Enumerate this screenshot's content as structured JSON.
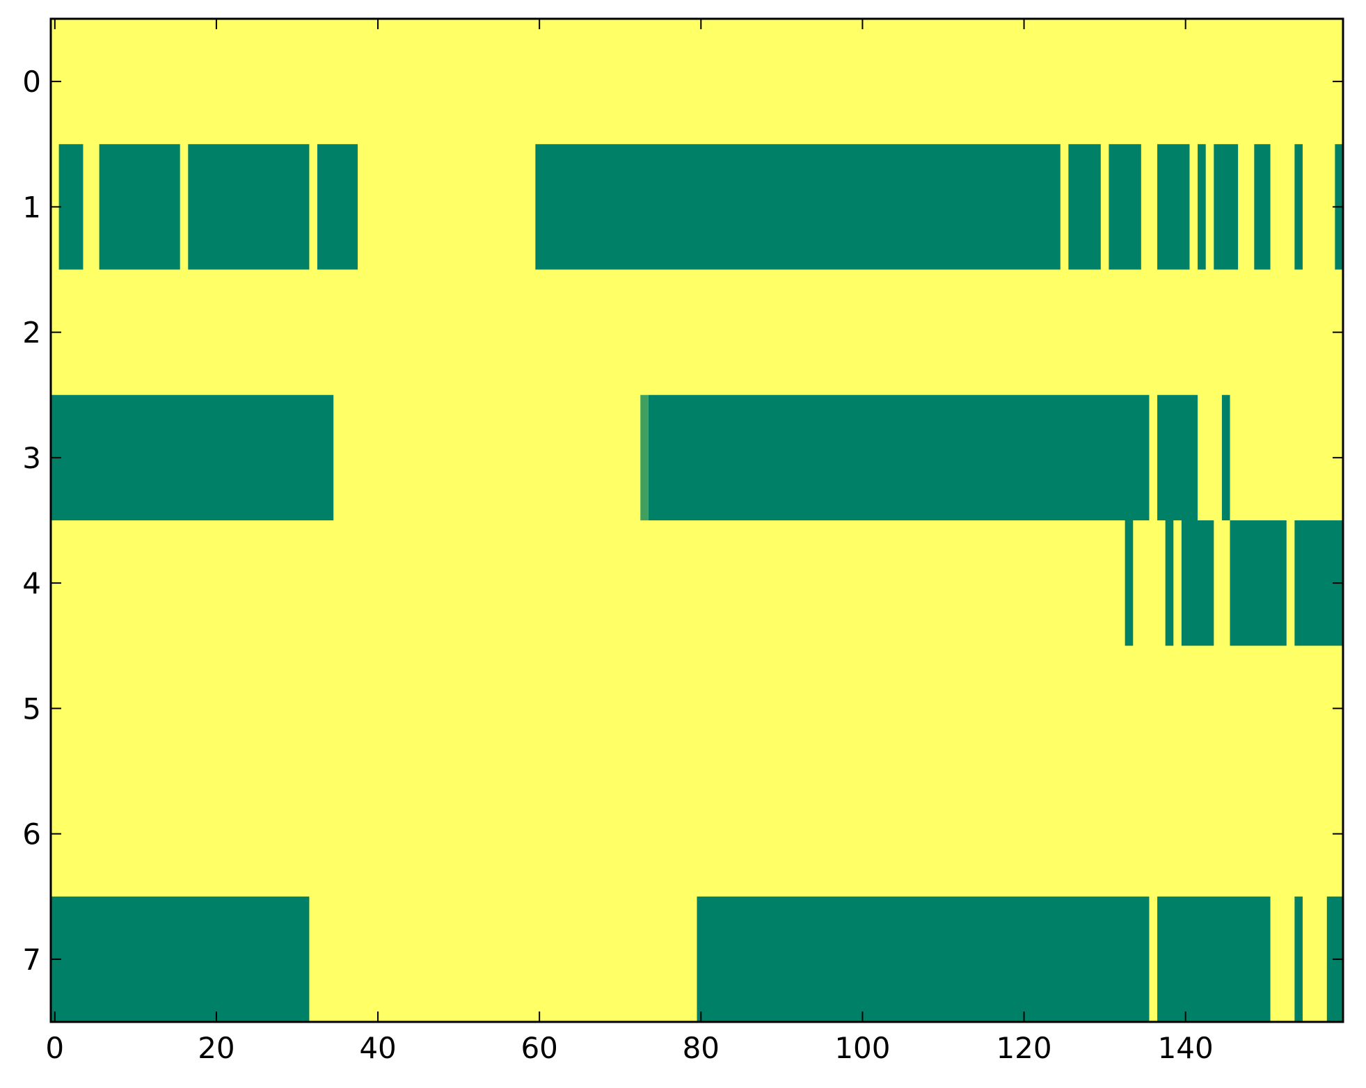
{
  "chart_data": {
    "type": "heatmap",
    "title": "",
    "xlabel": "",
    "ylabel": "",
    "xlim": [
      -0.5,
      159.5
    ],
    "ylim": [
      7.5,
      -0.5
    ],
    "x_ticks": [
      0,
      20,
      40,
      60,
      80,
      100,
      120,
      140
    ],
    "y_ticks": [
      0,
      1,
      2,
      3,
      4,
      5,
      6,
      7
    ],
    "grid": false,
    "legend": "none",
    "colors": {
      "background": "#ffff66",
      "cell": "#008066",
      "cell_light": "#40a060"
    },
    "rows": [
      {
        "row": 0,
        "segments": []
      },
      {
        "row": 1,
        "segments": [
          [
            1,
            3
          ],
          [
            6,
            15
          ],
          [
            17,
            31
          ],
          [
            33,
            37
          ],
          [
            60,
            124
          ],
          [
            126,
            129
          ],
          [
            131,
            134
          ],
          [
            137,
            140
          ],
          [
            142,
            142
          ],
          [
            144,
            146
          ],
          [
            149,
            150
          ],
          [
            154,
            154
          ],
          [
            159,
            159
          ]
        ]
      },
      {
        "row": 2,
        "segments": []
      },
      {
        "row": 3,
        "segments": [
          [
            0,
            34
          ],
          [
            73,
            73,
            "light"
          ],
          [
            74,
            135
          ],
          [
            137,
            141
          ],
          [
            145,
            145
          ]
        ]
      },
      {
        "row": 4,
        "segments": [
          [
            133,
            133
          ],
          [
            138,
            138
          ],
          [
            140,
            143
          ],
          [
            146,
            152
          ],
          [
            154,
            159
          ]
        ]
      },
      {
        "row": 5,
        "segments": []
      },
      {
        "row": 6,
        "segments": []
      },
      {
        "row": 7,
        "segments": [
          [
            0,
            31
          ],
          [
            80,
            135
          ],
          [
            137,
            150
          ],
          [
            154,
            154
          ],
          [
            158,
            159
          ]
        ]
      }
    ]
  }
}
